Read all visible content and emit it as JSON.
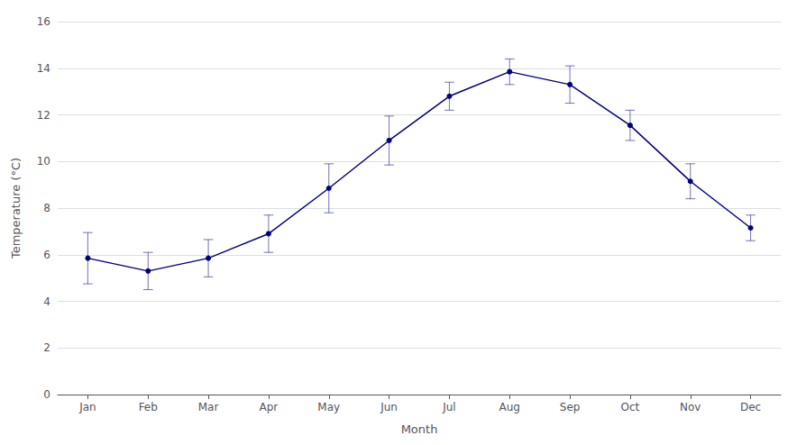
{
  "chart_data": {
    "type": "line",
    "xlabel": "Month",
    "ylabel": "Temperature (°C)",
    "categories": [
      "Jan",
      "Feb",
      "Mar",
      "Apr",
      "May",
      "Jun",
      "Jul",
      "Aug",
      "Sep",
      "Oct",
      "Nov",
      "Dec"
    ],
    "values": [
      5.85,
      5.3,
      5.85,
      6.9,
      8.85,
      10.9,
      12.8,
      13.85,
      13.3,
      11.55,
      9.15,
      7.15
    ],
    "errors": [
      1.1,
      0.8,
      0.8,
      0.8,
      1.05,
      1.05,
      0.6,
      0.55,
      0.8,
      0.65,
      0.75,
      0.55
    ],
    "color": "#000080",
    "marker": "circle",
    "ylim": [
      0,
      16
    ],
    "yticks": [
      0,
      2,
      4,
      6,
      8,
      10,
      12,
      14,
      16
    ],
    "grid": true
  }
}
